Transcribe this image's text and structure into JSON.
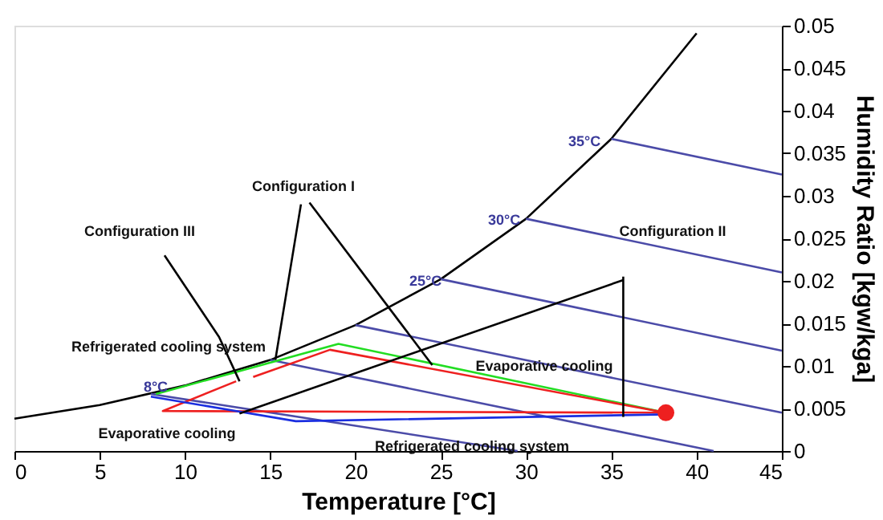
{
  "chart_data": {
    "type": "line",
    "xlabel": "Temperature [°C]",
    "y2label": "Humidity Ratio [kgw/kga]",
    "xlim": [
      0,
      45
    ],
    "xticks": [
      0,
      5,
      10,
      15,
      20,
      25,
      30,
      35,
      40,
      45
    ],
    "y2lim": [
      0,
      0.05
    ],
    "y2ticks": [
      0,
      0.005,
      0.01,
      0.015,
      0.02,
      0.025,
      0.03,
      0.035,
      0.04,
      0.045,
      0.05
    ],
    "grid": false,
    "marker": "none",
    "line_style": "solid",
    "series": [
      {
        "color": "#000000",
        "axis": "y2",
        "x": [
          0,
          5,
          10,
          15,
          20,
          25,
          30,
          35,
          40
        ],
        "values": [
          0.0038,
          0.0054,
          0.0077,
          0.0107,
          0.0148,
          0.0202,
          0.0273,
          0.0367,
          0.0491
        ]
      },
      {
        "color": "#4b4ba8",
        "axis": "y2",
        "x": [
          35,
          45
        ],
        "values": [
          0.0367,
          0.0325
        ]
      },
      {
        "color": "#4b4ba8",
        "axis": "y2",
        "x": [
          30,
          45
        ],
        "values": [
          0.0273,
          0.021
        ]
      },
      {
        "color": "#4b4ba8",
        "axis": "y2",
        "x": [
          25,
          45
        ],
        "values": [
          0.0202,
          0.0118
        ]
      },
      {
        "color": "#4b4ba8",
        "axis": "y2",
        "x": [
          20,
          45
        ],
        "values": [
          0.0148,
          0.0045
        ]
      },
      {
        "color": "#4b4ba8",
        "axis": "y2",
        "x": [
          15,
          41
        ],
        "values": [
          0.0107,
          0
        ]
      },
      {
        "color": "#4b4ba8",
        "axis": "y2",
        "x": [
          8,
          29.5
        ],
        "values": [
          0.0067,
          0
        ]
      },
      {
        "color": "#22dd22",
        "axis": "y2",
        "x": [
          38.2,
          19,
          8.3
        ],
        "values": [
          0.0045,
          0.0126,
          0.0067
        ]
      },
      {
        "color": "#ee2020",
        "axis": "y2",
        "x": [
          38.2,
          18.5,
          14
        ],
        "values": [
          0.0045,
          0.0119,
          0.0087
        ]
      },
      {
        "color": "#ee2020",
        "axis": "y2",
        "x": [
          38.2,
          8.7,
          13
        ],
        "values": [
          0.0045,
          0.0047,
          0.0082
        ]
      },
      {
        "color": "#1a2ee0",
        "axis": "y2",
        "x": [
          38.2,
          16.5,
          8
        ],
        "values": [
          0.0043,
          0.0035,
          0.0064
        ]
      },
      {
        "color": "#000000",
        "axis": "y2",
        "x": [
          15.3,
          16.8
        ],
        "values": [
          0.0107,
          0.029
        ]
      },
      {
        "color": "#000000",
        "axis": "y2",
        "x": [
          24.5,
          17.3
        ],
        "values": [
          0.0101,
          0.0292
        ]
      },
      {
        "color": "#000000",
        "axis": "y2",
        "x": [
          13.2,
          12.0,
          8.8
        ],
        "values": [
          0.0082,
          0.0134,
          0.023
        ]
      },
      {
        "color": "#000000",
        "axis": "y2",
        "x": [
          13.2,
          35.7
        ],
        "values": [
          0.0044,
          0.0201
        ]
      },
      {
        "color": "#000000",
        "axis": "y2",
        "x": [
          35.7,
          35.7
        ],
        "values": [
          0.004,
          0.0205
        ]
      },
      {
        "type": "scatter",
        "marker": "circle",
        "color": "#ee2020",
        "axis": "y2",
        "x": [
          38.2
        ],
        "values": [
          0.0045
        ]
      }
    ],
    "annotations": [
      "Configuration I",
      "Configuration II",
      "Configuration III",
      "Refrigerated cooling system",
      "Evaporative cooling",
      "Evaporative cooling",
      "Refrigerated cooling system",
      "8°C",
      "25°C",
      "30°C",
      "35°C"
    ]
  }
}
